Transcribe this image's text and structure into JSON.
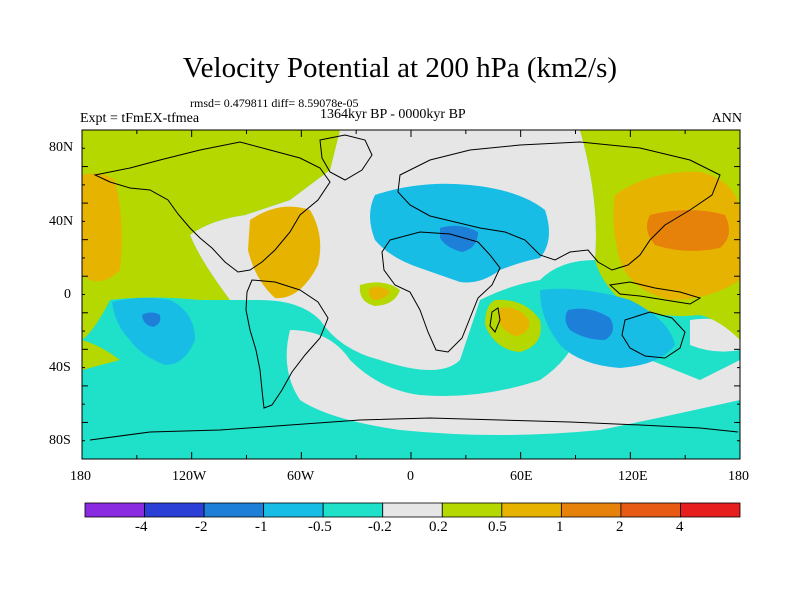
{
  "title": "Velocity Potential at 200 hPa (km2/s)",
  "stats": {
    "rmsd_label": "rmsd= 0.479811 diff= 8.59078e-05"
  },
  "period": "1364kyr BP - 0000kyr BP",
  "experiment": "Expt = tFmEX-tfmea",
  "season": "ANN",
  "lat_ticks": [
    "80N",
    "40N",
    "0",
    "40S",
    "80S"
  ],
  "lon_ticks": [
    "180",
    "120W",
    "60W",
    "0",
    "60E",
    "120E",
    "180"
  ],
  "colorbar": {
    "colors": [
      "#8a2be2",
      "#2b3fd6",
      "#1e7fd9",
      "#18bde6",
      "#1fe0c8",
      "#e6e6e6",
      "#b4d800",
      "#e6b400",
      "#e6820a",
      "#e65a14",
      "#e61e1e"
    ],
    "tick_labels": [
      "-4",
      "-2",
      "-1",
      "-0.5",
      "-0.2",
      "0.2",
      "0.5",
      "1",
      "2",
      "4"
    ]
  },
  "colors": {
    "neg_weak": "#1fe0c8",
    "neg_mid": "#18bde6",
    "neg_strong": "#1e7fd9",
    "neutral": "#e6e6e6",
    "pos_weak": "#b4d800",
    "pos_mid": "#e6b400",
    "pos_strong": "#e6820a"
  }
}
